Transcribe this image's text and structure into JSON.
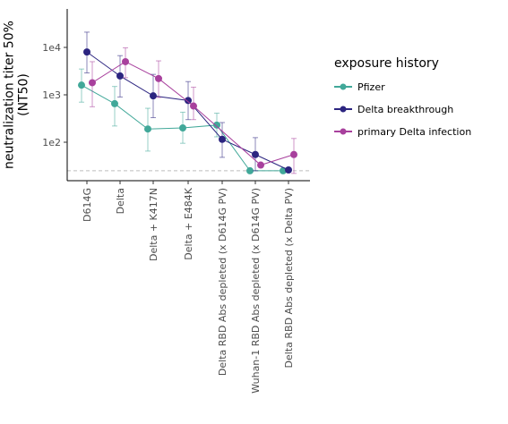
{
  "chart_data": {
    "type": "line",
    "title": "",
    "xlabel": "",
    "ylabel": "neutralization titer 50%\n(NT50)",
    "yscale": "log10",
    "ylim": [
      15,
      60000
    ],
    "yticks": [
      {
        "value": 100,
        "label": "1e2"
      },
      {
        "value": 1000,
        "label": "1e3"
      },
      {
        "value": 10000,
        "label": "1e4"
      }
    ],
    "reference_line": {
      "value": 25,
      "style": "dashed",
      "color": "#bdbdbd"
    },
    "categories": [
      "D614G",
      "Delta",
      "Delta + K417N",
      "Delta + E484K",
      "Delta RBD Abs depleted (x D614G PV)",
      "Wuhan-1 RBD Abs depleted (x D614G PV)",
      "Delta RBD Abs depleted (x Delta PV)"
    ],
    "legend": {
      "title": "exposure history",
      "position": "right"
    },
    "grid": false,
    "series": [
      {
        "name": "Pfizer",
        "color": "#41a899",
        "values": [
          1600,
          650,
          190,
          200,
          230,
          25,
          25
        ],
        "error_low": [
          700,
          220,
          65,
          95,
          130,
          null,
          null
        ],
        "error_high": [
          3500,
          1500,
          520,
          430,
          410,
          null,
          null
        ]
      },
      {
        "name": "Delta breakthrough",
        "color": "#2c2580",
        "values": [
          8000,
          2500,
          950,
          760,
          115,
          55,
          26
        ],
        "error_low": [
          2900,
          900,
          330,
          300,
          48,
          25,
          null
        ],
        "error_high": [
          21000,
          6700,
          2700,
          1900,
          260,
          125,
          null
        ]
      },
      {
        "name": "primary Delta infection",
        "color": "#a8409d",
        "values": [
          1800,
          5000,
          2200,
          580,
          null,
          33,
          55
        ],
        "error_low": [
          560,
          2300,
          880,
          300,
          null,
          null,
          22
        ],
        "error_high": [
          5000,
          9800,
          5200,
          1450,
          null,
          null,
          120
        ]
      }
    ]
  }
}
